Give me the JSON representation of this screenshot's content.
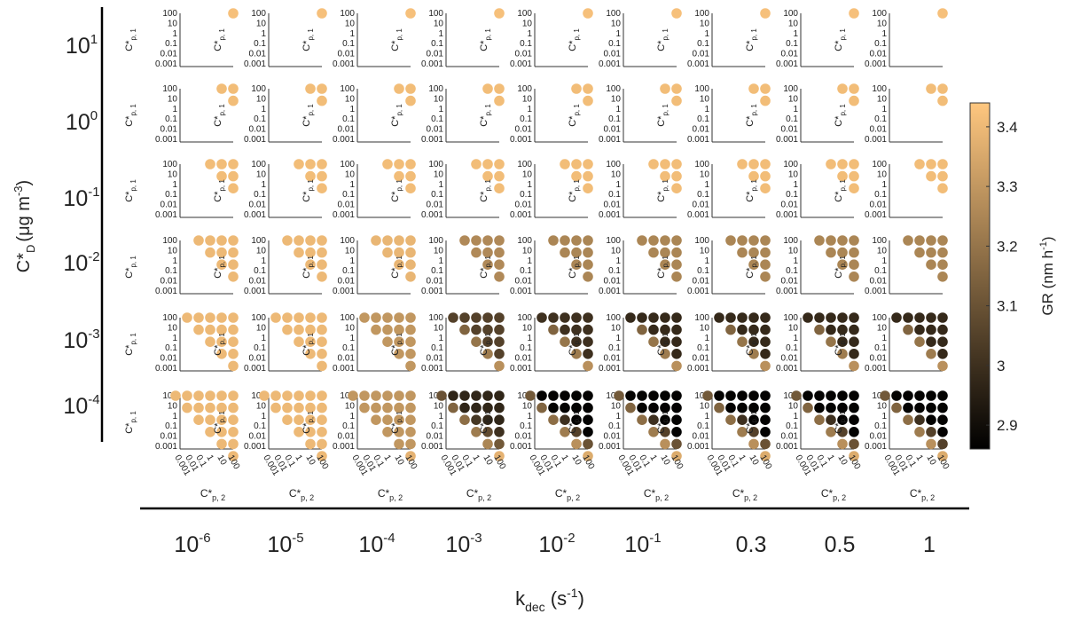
{
  "chart_data": {
    "type": "scatter",
    "layout": "small-multiples grid",
    "xlabel": "k",
    "xlabel_sub": "dec",
    "xlabel_unit_open": " (s",
    "xlabel_unit_exp": "-1",
    "xlabel_unit_close": ")",
    "ylabel_main": "C*",
    "ylabel_sub": "D",
    "ylabel_unit_open": "(μg m",
    "ylabel_unit_exp": "-3",
    "ylabel_unit_close": ")",
    "subplot_ylabel_main": "C*",
    "subplot_ylabel_sub": "p, 1",
    "subplot_xlabel_main": "C*",
    "subplot_xlabel_sub": "p, 2",
    "subplot_ticks": [
      "0.001",
      "0.01",
      "0.1",
      "1",
      "10",
      "100"
    ],
    "columns": [
      {
        "base": "10",
        "exp": "-6"
      },
      {
        "base": "10",
        "exp": "-5"
      },
      {
        "base": "10",
        "exp": "-4"
      },
      {
        "base": "10",
        "exp": "-3"
      },
      {
        "base": "10",
        "exp": "-2"
      },
      {
        "base": "10",
        "exp": "-1"
      },
      {
        "base": "0.3",
        "exp": ""
      },
      {
        "base": "0.5",
        "exp": ""
      },
      {
        "base": "1",
        "exp": ""
      }
    ],
    "rows": [
      {
        "base": "10",
        "exp": "1"
      },
      {
        "base": "10",
        "exp": "0"
      },
      {
        "base": "10",
        "exp": "-1"
      },
      {
        "base": "10",
        "exp": "-2"
      },
      {
        "base": "10",
        "exp": "-3"
      },
      {
        "base": "10",
        "exp": "-4"
      }
    ],
    "row_lower_bound_exponent": [
      2,
      1,
      0,
      -1,
      -2,
      -3
    ],
    "colorbar": {
      "label": "GR (nm h",
      "label_exp": "-1",
      "label_close": ")",
      "min": 2.86,
      "max": 3.44,
      "ticks": [
        "2.9",
        "3",
        "3.1",
        "3.2",
        "3.3",
        "3.4"
      ],
      "colormap": "copper",
      "color_low": "#000000",
      "color_high": "#ffc77f"
    },
    "growth_rates": [
      [
        [
          [
            3.42
          ]
        ],
        [
          [
            3.42
          ]
        ],
        [
          [
            3.42
          ]
        ],
        [
          [
            3.42
          ]
        ],
        [
          [
            3.42
          ]
        ],
        [
          [
            3.42
          ]
        ],
        [
          [
            3.42
          ]
        ],
        [
          [
            3.42
          ]
        ],
        [
          [
            3.42
          ]
        ]
      ],
      [
        [
          [
            3.41,
            3.41
          ],
          [
            3.41
          ]
        ],
        [
          [
            3.41,
            3.41
          ],
          [
            3.41
          ]
        ],
        [
          [
            3.41,
            3.41
          ],
          [
            3.41
          ]
        ],
        [
          [
            3.41,
            3.41
          ],
          [
            3.41
          ]
        ],
        [
          [
            3.41,
            3.41
          ],
          [
            3.41
          ]
        ],
        [
          [
            3.41,
            3.41
          ],
          [
            3.41
          ]
        ],
        [
          [
            3.41,
            3.41
          ],
          [
            3.41
          ]
        ],
        [
          [
            3.41,
            3.41
          ],
          [
            3.41
          ]
        ],
        [
          [
            3.41,
            3.41
          ],
          [
            3.41
          ]
        ]
      ],
      [
        [
          [
            3.41,
            3.41,
            3.41
          ],
          [
            3.41,
            3.41
          ],
          [
            3.41
          ]
        ],
        [
          [
            3.41,
            3.41,
            3.41
          ],
          [
            3.41,
            3.41
          ],
          [
            3.41
          ]
        ],
        [
          [
            3.41,
            3.41,
            3.41
          ],
          [
            3.41,
            3.41
          ],
          [
            3.41
          ]
        ],
        [
          [
            3.41,
            3.41,
            3.41
          ],
          [
            3.41,
            3.41
          ],
          [
            3.41
          ]
        ],
        [
          [
            3.41,
            3.41,
            3.41
          ],
          [
            3.41,
            3.41
          ],
          [
            3.41
          ]
        ],
        [
          [
            3.41,
            3.41,
            3.41
          ],
          [
            3.41,
            3.41
          ],
          [
            3.41
          ]
        ],
        [
          [
            3.41,
            3.41,
            3.41
          ],
          [
            3.41,
            3.41
          ],
          [
            3.41
          ]
        ],
        [
          [
            3.41,
            3.41,
            3.41
          ],
          [
            3.41,
            3.41
          ],
          [
            3.41
          ]
        ],
        [
          [
            3.41,
            3.41,
            3.41
          ],
          [
            3.41,
            3.41
          ],
          [
            3.41
          ]
        ]
      ],
      [
        [
          [
            3.4,
            3.4,
            3.4,
            3.4
          ],
          [
            3.4,
            3.4,
            3.4
          ],
          [
            3.4,
            3.4
          ],
          [
            3.4
          ]
        ],
        [
          [
            3.4,
            3.4,
            3.4,
            3.4
          ],
          [
            3.4,
            3.4,
            3.4
          ],
          [
            3.4,
            3.4
          ],
          [
            3.4
          ]
        ],
        [
          [
            3.39,
            3.39,
            3.39,
            3.39
          ],
          [
            3.39,
            3.39,
            3.39
          ],
          [
            3.39,
            3.39
          ],
          [
            3.39
          ]
        ],
        [
          [
            3.26,
            3.26,
            3.26,
            3.26
          ],
          [
            3.26,
            3.26,
            3.26
          ],
          [
            3.26,
            3.26
          ],
          [
            3.26
          ]
        ],
        [
          [
            3.25,
            3.25,
            3.25,
            3.25
          ],
          [
            3.25,
            3.25,
            3.25
          ],
          [
            3.25,
            3.25
          ],
          [
            3.25
          ]
        ],
        [
          [
            3.25,
            3.25,
            3.25,
            3.25
          ],
          [
            3.25,
            3.25,
            3.25
          ],
          [
            3.25,
            3.25
          ],
          [
            3.25
          ]
        ],
        [
          [
            3.25,
            3.25,
            3.25,
            3.25
          ],
          [
            3.25,
            3.25,
            3.25
          ],
          [
            3.25,
            3.25
          ],
          [
            3.25
          ]
        ],
        [
          [
            3.25,
            3.25,
            3.25,
            3.25
          ],
          [
            3.25,
            3.25,
            3.25
          ],
          [
            3.25,
            3.25
          ],
          [
            3.25
          ]
        ],
        [
          [
            3.25,
            3.25,
            3.25,
            3.25
          ],
          [
            3.25,
            3.25,
            3.25
          ],
          [
            3.25,
            3.25
          ],
          [
            3.25
          ]
        ]
      ],
      [
        [
          [
            3.4,
            3.4,
            3.4,
            3.4,
            3.4
          ],
          [
            3.4,
            3.4,
            3.4,
            3.4
          ],
          [
            3.4,
            3.4,
            3.4
          ],
          [
            3.4,
            3.4
          ],
          [
            3.4
          ]
        ],
        [
          [
            3.4,
            3.4,
            3.4,
            3.4,
            3.4
          ],
          [
            3.4,
            3.4,
            3.4,
            3.4
          ],
          [
            3.4,
            3.4,
            3.4
          ],
          [
            3.4,
            3.4
          ],
          [
            3.4
          ]
        ],
        [
          [
            3.3,
            3.3,
            3.3,
            3.3,
            3.3
          ],
          [
            3.3,
            3.3,
            3.3,
            3.3
          ],
          [
            3.3,
            3.3,
            3.3
          ],
          [
            3.3,
            3.3
          ],
          [
            3.3
          ]
        ],
        [
          [
            3.05,
            3.05,
            3.05,
            3.05,
            3.05
          ],
          [
            3.15,
            3.05,
            3.05,
            3.05
          ],
          [
            3.2,
            3.05,
            3.05
          ],
          [
            3.22,
            3.05
          ],
          [
            3.28
          ]
        ],
        [
          [
            3.0,
            3.0,
            3.0,
            3.0,
            3.0
          ],
          [
            3.15,
            3.0,
            3.0,
            3.0
          ],
          [
            3.2,
            3.0,
            3.0
          ],
          [
            3.22,
            3.0
          ],
          [
            3.28
          ]
        ],
        [
          [
            2.98,
            2.98,
            2.98,
            2.98,
            2.98
          ],
          [
            3.15,
            2.98,
            2.98,
            2.98
          ],
          [
            3.2,
            2.98,
            2.98
          ],
          [
            3.22,
            2.98
          ],
          [
            3.28
          ]
        ],
        [
          [
            2.98,
            2.98,
            2.98,
            2.98,
            2.98
          ],
          [
            3.15,
            2.98,
            2.98,
            2.98
          ],
          [
            3.2,
            2.98,
            2.98
          ],
          [
            3.22,
            2.98
          ],
          [
            3.28
          ]
        ],
        [
          [
            2.98,
            2.98,
            2.98,
            2.98,
            2.98
          ],
          [
            3.15,
            2.98,
            2.98,
            2.98
          ],
          [
            3.2,
            2.98,
            2.98
          ],
          [
            3.22,
            2.98
          ],
          [
            3.28
          ]
        ],
        [
          [
            2.98,
            2.98,
            2.98,
            2.98,
            2.98
          ],
          [
            3.15,
            2.98,
            2.98,
            2.98
          ],
          [
            3.2,
            2.98,
            2.98
          ],
          [
            3.22,
            2.98
          ],
          [
            3.28
          ]
        ]
      ],
      [
        [
          [
            3.4,
            3.4,
            3.4,
            3.4,
            3.4,
            3.4
          ],
          [
            3.4,
            3.4,
            3.4,
            3.4,
            3.4
          ],
          [
            3.4,
            3.4,
            3.4,
            3.4
          ],
          [
            3.4,
            3.4,
            3.4
          ],
          [
            3.4,
            3.4
          ],
          [
            3.4
          ]
        ],
        [
          [
            3.4,
            3.4,
            3.4,
            3.4,
            3.4,
            3.4
          ],
          [
            3.4,
            3.4,
            3.4,
            3.4,
            3.4
          ],
          [
            3.4,
            3.4,
            3.4,
            3.4
          ],
          [
            3.4,
            3.4,
            3.4
          ],
          [
            3.4,
            3.4
          ],
          [
            3.4
          ]
        ],
        [
          [
            3.3,
            3.3,
            3.3,
            3.3,
            3.3,
            3.3
          ],
          [
            3.3,
            3.3,
            3.3,
            3.3,
            3.3
          ],
          [
            3.3,
            3.3,
            3.3,
            3.3
          ],
          [
            3.3,
            3.3,
            3.3
          ],
          [
            3.3,
            3.3
          ],
          [
            3.38
          ]
        ],
        [
          [
            3.1,
            2.97,
            2.97,
            2.97,
            2.97,
            2.97
          ],
          [
            3.15,
            2.97,
            2.97,
            2.97,
            2.97
          ],
          [
            3.18,
            3.02,
            2.97,
            2.97
          ],
          [
            3.22,
            3.08,
            3.0
          ],
          [
            3.25,
            3.12
          ],
          [
            3.38
          ]
        ],
        [
          [
            3.12,
            2.87,
            2.87,
            2.87,
            2.87,
            2.87
          ],
          [
            3.15,
            2.87,
            2.87,
            2.87,
            2.87
          ],
          [
            3.18,
            3.0,
            2.87,
            2.87
          ],
          [
            3.22,
            3.05,
            2.87
          ],
          [
            3.28,
            3.1
          ],
          [
            3.36
          ]
        ],
        [
          [
            3.12,
            2.87,
            2.87,
            2.87,
            2.87,
            2.87
          ],
          [
            3.15,
            2.87,
            2.87,
            2.87,
            2.87
          ],
          [
            3.18,
            3.0,
            2.87,
            2.87
          ],
          [
            3.22,
            3.05,
            2.87
          ],
          [
            3.28,
            3.1
          ],
          [
            3.36
          ]
        ],
        [
          [
            3.12,
            2.87,
            2.87,
            2.87,
            2.87,
            2.87
          ],
          [
            3.15,
            2.87,
            2.87,
            2.87,
            2.87
          ],
          [
            3.18,
            3.0,
            2.87,
            2.87
          ],
          [
            3.22,
            3.05,
            2.87
          ],
          [
            3.28,
            3.1
          ],
          [
            3.36
          ]
        ],
        [
          [
            3.12,
            2.87,
            2.87,
            2.87,
            2.87,
            2.87
          ],
          [
            3.15,
            2.87,
            2.87,
            2.87,
            2.87
          ],
          [
            3.18,
            3.0,
            2.87,
            2.87
          ],
          [
            3.22,
            3.05,
            2.87
          ],
          [
            3.28,
            3.1
          ],
          [
            3.36
          ]
        ],
        [
          [
            3.12,
            2.87,
            2.87,
            2.87,
            2.87,
            2.87
          ],
          [
            3.15,
            2.87,
            2.87,
            2.87,
            2.87
          ],
          [
            3.18,
            3.0,
            2.87,
            2.87
          ],
          [
            3.22,
            3.05,
            2.87
          ],
          [
            3.28,
            3.05
          ],
          [
            3.36
          ]
        ]
      ]
    ]
  }
}
